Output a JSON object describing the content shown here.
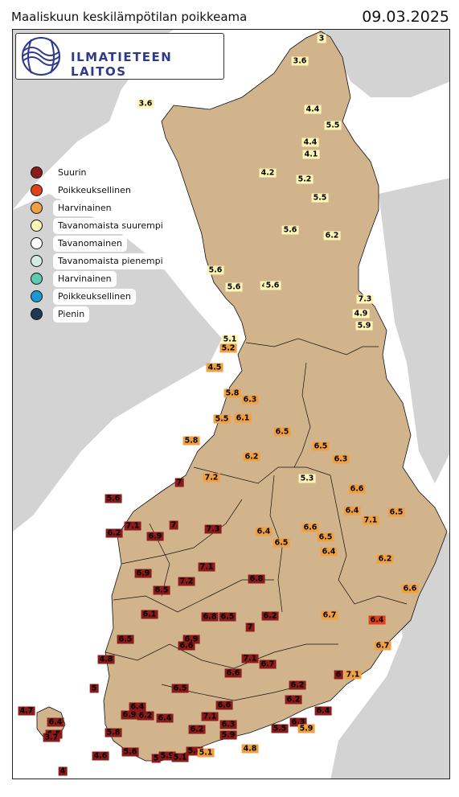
{
  "header": {
    "title": "Maaliskuun keskilämpötilan poikkeama",
    "date": "09.03.2025"
  },
  "logo": {
    "text": "ILMATIETEEN LAITOS"
  },
  "colors": {
    "Suurin": "#8b1a1a",
    "Poikkeuksellinen": "#e0401a",
    "Harvinainen": "#f0a040",
    "Tavanomaista suurempi": "#fff6b8",
    "Tavanomainen": "#ffffff",
    "Tavanomaista pienempi": "#d2ece4",
    "Harvinainen_cold": "#5ecab0",
    "Poikkeuksellinen_cold": "#1a9ad4",
    "Pienin": "#1e3a55",
    "land": "#d2b48c",
    "neighbour_land": "#d3d3d3",
    "sea": "#ffffff"
  },
  "legend": [
    {
      "label": "Suurin",
      "color": "#8b1a1a"
    },
    {
      "label": "Poikkeuksellinen",
      "color": "#e0401a"
    },
    {
      "label": "Harvinainen",
      "color": "#f0a040"
    },
    {
      "label": "Tavanomaista suurempi",
      "color": "#fff6b8"
    },
    {
      "label": "Tavanomainen",
      "color": "#ffffff"
    },
    {
      "label": "Tavanomaista pienempi",
      "color": "#d2ece4"
    },
    {
      "label": "Harvinainen",
      "color": "#5ecab0"
    },
    {
      "label": "Poikkeuksellinen",
      "color": "#1a9ad4"
    },
    {
      "label": "Pienin",
      "color": "#1e3a55"
    }
  ],
  "stations": [
    {
      "v": "3",
      "c": "#fff6b8"
    },
    {
      "v": "3.6",
      "c": "#fff6b8"
    },
    {
      "v": "3.6",
      "c": "#fff6b8"
    },
    {
      "v": "4.4",
      "c": "#fff6b8"
    },
    {
      "v": "5.5",
      "c": "#fff6b8"
    },
    {
      "v": "4.4",
      "c": "#fff6b8"
    },
    {
      "v": "4.1",
      "c": "#fff6b8"
    },
    {
      "v": "4.2",
      "c": "#fff6b8"
    },
    {
      "v": "5.2",
      "c": "#fff6b8"
    },
    {
      "v": "5.5",
      "c": "#fff6b8"
    },
    {
      "v": "5.6",
      "c": "#fff6b8"
    },
    {
      "v": "6.2",
      "c": "#fff6b8"
    },
    {
      "v": "5.6",
      "c": "#fff6b8"
    },
    {
      "v": "5.6",
      "c": "#fff6b8"
    },
    {
      "v": "4",
      "c": "#fff6b8"
    },
    {
      "v": "5.6",
      "c": "#fff6b8"
    },
    {
      "v": "7.3",
      "c": "#fff6b8"
    },
    {
      "v": "4.9",
      "c": "#fff6b8"
    },
    {
      "v": "5.9",
      "c": "#fff6b8"
    },
    {
      "v": "5.1",
      "c": "#fff6b8"
    },
    {
      "v": "5.2",
      "c": "#f0a040"
    },
    {
      "v": "4.5",
      "c": "#f0a040"
    },
    {
      "v": "5.8",
      "c": "#f0a040"
    },
    {
      "v": "6.3",
      "c": "#f0a040"
    },
    {
      "v": "5.5",
      "c": "#f0a040"
    },
    {
      "v": "6.1",
      "c": "#f0a040"
    },
    {
      "v": "6.5",
      "c": "#f0a040"
    },
    {
      "v": "5.8",
      "c": "#f0a040"
    },
    {
      "v": "6.5",
      "c": "#f0a040"
    },
    {
      "v": "6.3",
      "c": "#f0a040"
    },
    {
      "v": "6.2",
      "c": "#f0a040"
    },
    {
      "v": "7.2",
      "c": "#f0a040"
    },
    {
      "v": "7",
      "c": "#8b1a1a"
    },
    {
      "v": "5.3",
      "c": "#fff6b8"
    },
    {
      "v": "6.6",
      "c": "#f0a040"
    },
    {
      "v": "5.6",
      "c": "#8b1a1a"
    },
    {
      "v": "6.4",
      "c": "#f0a040"
    },
    {
      "v": "7.1",
      "c": "#f0a040"
    },
    {
      "v": "6.5",
      "c": "#f0a040"
    },
    {
      "v": "7.1",
      "c": "#8b1a1a"
    },
    {
      "v": "7",
      "c": "#8b1a1a"
    },
    {
      "v": "6.2",
      "c": "#8b1a1a"
    },
    {
      "v": "6.9",
      "c": "#8b1a1a"
    },
    {
      "v": "7.3",
      "c": "#8b1a1a"
    },
    {
      "v": "6.4",
      "c": "#f0a040"
    },
    {
      "v": "6.6",
      "c": "#f0a040"
    },
    {
      "v": "6.5",
      "c": "#f0a040"
    },
    {
      "v": "6.5",
      "c": "#f0a040"
    },
    {
      "v": "6.4",
      "c": "#f0a040"
    },
    {
      "v": "6.2",
      "c": "#f0a040"
    },
    {
      "v": "6.9",
      "c": "#8b1a1a"
    },
    {
      "v": "7.1",
      "c": "#8b1a1a"
    },
    {
      "v": "7.2",
      "c": "#8b1a1a"
    },
    {
      "v": "6.8",
      "c": "#8b1a1a"
    },
    {
      "v": "6.5",
      "c": "#8b1a1a"
    },
    {
      "v": "6.6",
      "c": "#f0a040"
    },
    {
      "v": "6.1",
      "c": "#8b1a1a"
    },
    {
      "v": "6.8",
      "c": "#8b1a1a"
    },
    {
      "v": "6.5",
      "c": "#8b1a1a"
    },
    {
      "v": "6.2",
      "c": "#8b1a1a"
    },
    {
      "v": "6.7",
      "c": "#f0a040"
    },
    {
      "v": "7",
      "c": "#8b1a1a"
    },
    {
      "v": "6.4",
      "c": "#e0401a"
    },
    {
      "v": "6.5",
      "c": "#8b1a1a"
    },
    {
      "v": "6.9",
      "c": "#8b1a1a"
    },
    {
      "v": "6.6",
      "c": "#8b1a1a"
    },
    {
      "v": "6.7",
      "c": "#f0a040"
    },
    {
      "v": "4.8",
      "c": "#8b1a1a"
    },
    {
      "v": "7.1",
      "c": "#8b1a1a"
    },
    {
      "v": "6.7",
      "c": "#8b1a1a"
    },
    {
      "v": "6.6",
      "c": "#8b1a1a"
    },
    {
      "v": "6",
      "c": "#8b1a1a"
    },
    {
      "v": "7.1",
      "c": "#f0a040"
    },
    {
      "v": "5",
      "c": "#8b1a1a"
    },
    {
      "v": "6.5",
      "c": "#8b1a1a"
    },
    {
      "v": "6.2",
      "c": "#8b1a1a"
    },
    {
      "v": "6.2",
      "c": "#8b1a1a"
    },
    {
      "v": "6.4",
      "c": "#8b1a1a"
    },
    {
      "v": "6.6",
      "c": "#8b1a1a"
    },
    {
      "v": "4.7",
      "c": "#8b1a1a"
    },
    {
      "v": "6.4",
      "c": "#8b1a1a"
    },
    {
      "v": "6.9",
      "c": "#8b1a1a"
    },
    {
      "v": "6.2",
      "c": "#8b1a1a"
    },
    {
      "v": "6.4",
      "c": "#8b1a1a"
    },
    {
      "v": "7.1",
      "c": "#8b1a1a"
    },
    {
      "v": "6.3",
      "c": "#8b1a1a"
    },
    {
      "v": "6.4",
      "c": "#8b1a1a"
    },
    {
      "v": "6.3",
      "c": "#8b1a1a"
    },
    {
      "v": "5.5",
      "c": "#8b1a1a"
    },
    {
      "v": "5.9",
      "c": "#f0a040"
    },
    {
      "v": "6.5",
      "c": "#8b1a1a"
    },
    {
      "v": "5.8",
      "c": "#8b1a1a"
    },
    {
      "v": "6.2",
      "c": "#8b1a1a"
    },
    {
      "v": "5.9",
      "c": "#8b1a1a"
    },
    {
      "v": "4.8",
      "c": "#f0a040"
    },
    {
      "v": "3.7",
      "c": "#8b1a1a"
    },
    {
      "v": "4.6",
      "c": "#8b1a1a"
    },
    {
      "v": "5.6",
      "c": "#8b1a1a"
    },
    {
      "v": "5",
      "c": "#8b1a1a"
    },
    {
      "v": "5.9",
      "c": "#8b1a1a"
    },
    {
      "v": "5.1",
      "c": "#8b1a1a"
    },
    {
      "v": "5.4",
      "c": "#8b1a1a"
    },
    {
      "v": "5.1",
      "c": "#f0a040"
    },
    {
      "v": "4",
      "c": "#8b1a1a"
    }
  ]
}
